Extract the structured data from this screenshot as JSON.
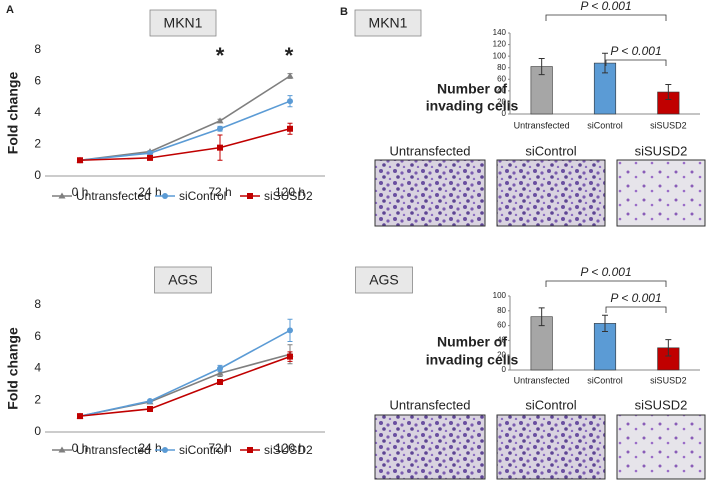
{
  "panel_labels": [
    "A",
    "B"
  ],
  "chart_data": [
    {
      "type": "line",
      "title": "MKN1",
      "y_label": "Fold change",
      "categories": [
        "0 h",
        "24 h",
        "72 h",
        "120 h"
      ],
      "ylim": [
        0,
        8
      ],
      "yticks": [
        0,
        2,
        4,
        6,
        8
      ],
      "grid": false,
      "legend": "bottom",
      "annotations": [
        "*",
        "*"
      ],
      "series": [
        {
          "name": "Untransfected",
          "color": "#7f7f7f",
          "marker": "triangle",
          "values": [
            1,
            1.55,
            3.5,
            6.35
          ],
          "errors": [
            0,
            0.05,
            0.1,
            0.15
          ]
        },
        {
          "name": "siControl",
          "color": "#5b9bd5",
          "marker": "circle",
          "values": [
            1,
            1.45,
            3.0,
            4.75
          ],
          "errors": [
            0,
            0.1,
            0.15,
            0.35
          ]
        },
        {
          "name": "siSUSD2",
          "color": "#c00000",
          "marker": "square",
          "values": [
            1,
            1.15,
            1.8,
            3.0
          ],
          "errors": [
            0,
            0.05,
            0.8,
            0.35
          ]
        }
      ]
    },
    {
      "type": "line",
      "title": "AGS",
      "y_label": "Fold change",
      "categories": [
        "0 h",
        "24 h",
        "72 h",
        "120 h"
      ],
      "ylim": [
        0,
        8
      ],
      "yticks": [
        0,
        2,
        4,
        6,
        8
      ],
      "grid": false,
      "legend": "bottom",
      "series": [
        {
          "name": "Untransfected",
          "color": "#7f7f7f",
          "marker": "triangle",
          "values": [
            1,
            1.9,
            3.7,
            4.9
          ],
          "errors": [
            0,
            0.1,
            0.2,
            0.6
          ]
        },
        {
          "name": "siControl",
          "color": "#5b9bd5",
          "marker": "circle",
          "values": [
            1,
            1.95,
            4.0,
            6.4
          ],
          "errors": [
            0,
            0.1,
            0.2,
            0.7
          ]
        },
        {
          "name": "siSUSD2",
          "color": "#c00000",
          "marker": "square",
          "values": [
            1,
            1.45,
            3.15,
            4.75
          ],
          "errors": [
            0,
            0.05,
            0.1,
            0.3
          ]
        }
      ]
    },
    {
      "type": "bar",
      "title": "MKN1",
      "y_label": [
        "Number of",
        "invading cells"
      ],
      "categories": [
        "Untransfected",
        "siControl",
        "siSUSD2"
      ],
      "values": [
        82,
        88,
        38
      ],
      "errors": [
        14,
        17,
        13
      ],
      "colors": [
        "#a6a6a6",
        "#5b9bd5",
        "#c00000"
      ],
      "ylim": [
        0,
        140
      ],
      "yticks": [
        0,
        20,
        40,
        60,
        80,
        100,
        120,
        140
      ],
      "annotations": [
        "P < 0.001",
        "P < 0.001"
      ]
    },
    {
      "type": "bar",
      "title": "AGS",
      "y_label": [
        "Number of",
        "invading cells"
      ],
      "categories": [
        "Untransfected",
        "siControl",
        "siSUSD2"
      ],
      "values": [
        72,
        63,
        30
      ],
      "errors": [
        12,
        11,
        11
      ],
      "colors": [
        "#a6a6a6",
        "#5b9bd5",
        "#c00000"
      ],
      "ylim": [
        0,
        100
      ],
      "yticks": [
        0,
        20,
        40,
        60,
        80,
        100
      ],
      "annotations": [
        "P < 0.001",
        "P < 0.001"
      ]
    }
  ],
  "micrograph_labels": [
    [
      "Untransfected",
      "siControl",
      "siSUSD2"
    ],
    [
      "Untransfected",
      "siControl",
      "siSUSD2"
    ]
  ]
}
